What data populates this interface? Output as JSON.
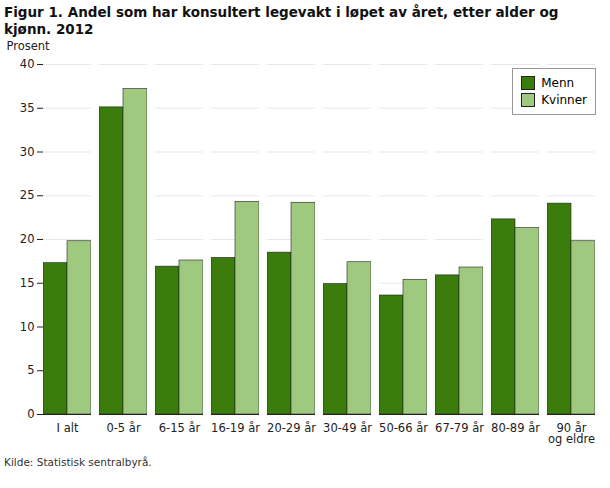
{
  "chart_data": {
    "type": "bar",
    "title": "Figur 1. Andel som har konsultert legevakt i løpet av året, etter alder og kjønn. 2012",
    "ylabel": "Prosent",
    "caption": "Kilde: Statistisk sentralbyrå.",
    "categories": [
      "I alt",
      "0-5 år",
      "6-15 år",
      "16-19 år",
      "20-29 år",
      "30-49 år",
      "50-66 år",
      "67-79 år",
      "80-89 år",
      "90 år\nog eldre"
    ],
    "series": [
      {
        "name": "Menn",
        "color": "#3b7d0c",
        "values": [
          17.3,
          35.1,
          16.9,
          17.9,
          18.5,
          14.9,
          13.6,
          15.9,
          22.3,
          24.1
        ]
      },
      {
        "name": "Kvinner",
        "color": "#9fc97f",
        "values": [
          19.8,
          37.2,
          17.6,
          24.3,
          24.2,
          17.4,
          15.4,
          16.8,
          21.3,
          19.8
        ]
      }
    ],
    "ylim": [
      0,
      40
    ],
    "yticks": [
      0,
      5,
      10,
      15,
      20,
      25,
      30,
      35,
      40
    ],
    "grid": true,
    "legend": "top-right"
  }
}
